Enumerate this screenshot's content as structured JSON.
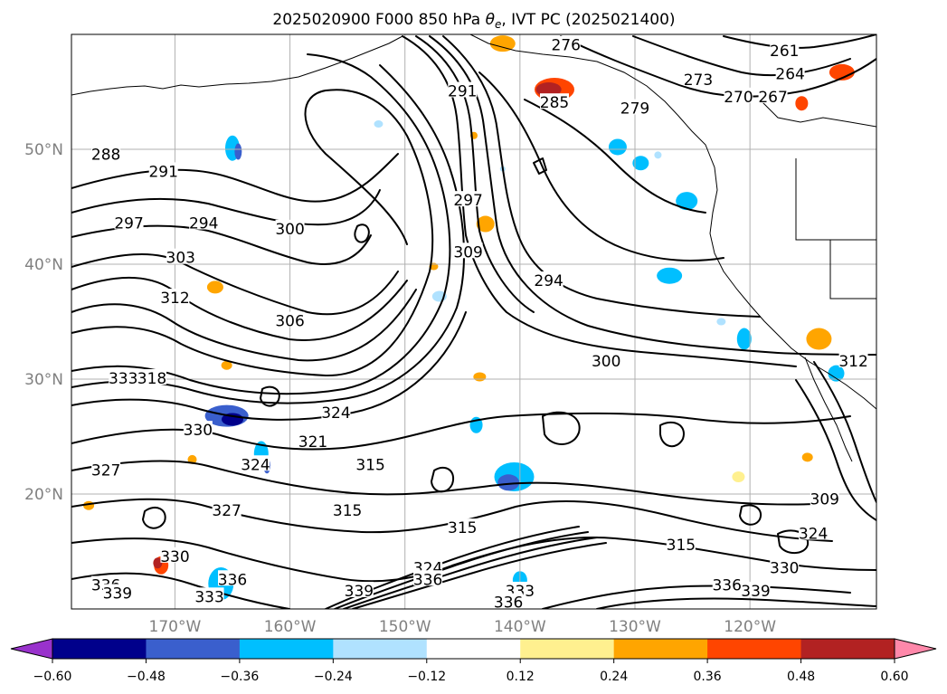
{
  "title": "2025020900 F000 850 hPa θe, IVT PC (2025021400)",
  "title_parts": {
    "prefix": "2025020900 F000 850 hPa ",
    "symbol": "θ",
    "subscript": "e",
    "suffix": ", IVT PC (2025021400)"
  },
  "chart_data": {
    "type": "contour",
    "title": "2025020900 F000 850 hPa θe, IVT PC (2025021400)",
    "x_ticks": [
      "170°W",
      "160°W",
      "150°W",
      "140°W",
      "130°W",
      "120°W"
    ],
    "y_ticks": [
      "20°N",
      "30°N",
      "40°N",
      "50°N"
    ],
    "x_tick_values": [
      -170,
      -160,
      -150,
      -140,
      -130,
      -120
    ],
    "y_tick_values": [
      20,
      30,
      40,
      50
    ],
    "xlim": [
      -179,
      -109
    ],
    "ylim": [
      10,
      60
    ],
    "grid": true,
    "colorbar": {
      "orientation": "horizontal",
      "extend": "both",
      "tick_labels": [
        "−0.60",
        "−0.48",
        "−0.36",
        "−0.24",
        "−0.12",
        "0.12",
        "0.24",
        "0.36",
        "0.48",
        "0.60"
      ],
      "bounds": [
        -0.6,
        -0.48,
        -0.36,
        -0.24,
        -0.12,
        0.12,
        0.24,
        0.36,
        0.48,
        0.6
      ],
      "colors": [
        "#9932cc",
        "#00008b",
        "#3a5fcd",
        "#00bfff",
        "#b0e2ff",
        "#ffffff",
        "#fff08f",
        "#ffa500",
        "#ff4500",
        "#b22222",
        "#ff88aa"
      ]
    },
    "contour_labels": [
      {
        "text": "261",
        "lon": -117,
        "lat": 58.5
      },
      {
        "text": "264",
        "lon": -116.5,
        "lat": 56.5
      },
      {
        "text": "267",
        "lon": -118,
        "lat": 54.5
      },
      {
        "text": "270",
        "lon": -121,
        "lat": 54.5
      },
      {
        "text": "273",
        "lon": -124.5,
        "lat": 56
      },
      {
        "text": "276",
        "lon": -136,
        "lat": 59
      },
      {
        "text": "279",
        "lon": -130,
        "lat": 53.5
      },
      {
        "text": "285",
        "lon": -137,
        "lat": 54
      },
      {
        "text": "288",
        "lon": -176,
        "lat": 49.5
      },
      {
        "text": "291",
        "lon": -145,
        "lat": 55
      },
      {
        "text": "291",
        "lon": -171,
        "lat": 48
      },
      {
        "text": "294",
        "lon": -167.5,
        "lat": 43.5
      },
      {
        "text": "294",
        "lon": -137.5,
        "lat": 38.5
      },
      {
        "text": "297",
        "lon": -174,
        "lat": 43.5
      },
      {
        "text": "297",
        "lon": -144.5,
        "lat": 45.5
      },
      {
        "text": "300",
        "lon": -160,
        "lat": 43
      },
      {
        "text": "300",
        "lon": -132.5,
        "lat": 31.5
      },
      {
        "text": "303",
        "lon": -169.5,
        "lat": 40.5
      },
      {
        "text": "306",
        "lon": -160,
        "lat": 35
      },
      {
        "text": "309",
        "lon": -144.5,
        "lat": 41
      },
      {
        "text": "309",
        "lon": -113.5,
        "lat": 19.5
      },
      {
        "text": "312",
        "lon": -170,
        "lat": 37
      },
      {
        "text": "312",
        "lon": -111,
        "lat": 31.5
      },
      {
        "text": "315",
        "lon": -153,
        "lat": 22.5
      },
      {
        "text": "315",
        "lon": -155,
        "lat": 18.5
      },
      {
        "text": "315",
        "lon": -145,
        "lat": 17
      },
      {
        "text": "315",
        "lon": -126,
        "lat": 15.5
      },
      {
        "text": "318",
        "lon": -172,
        "lat": 30
      },
      {
        "text": "321",
        "lon": -158,
        "lat": 24.5
      },
      {
        "text": "324",
        "lon": -163,
        "lat": 22.5
      },
      {
        "text": "324",
        "lon": -156,
        "lat": 27
      },
      {
        "text": "324",
        "lon": -148,
        "lat": 13.5
      },
      {
        "text": "324",
        "lon": -114.5,
        "lat": 16.5
      },
      {
        "text": "327",
        "lon": -165.5,
        "lat": 18.5
      },
      {
        "text": "327",
        "lon": -176,
        "lat": 22
      },
      {
        "text": "330",
        "lon": -170,
        "lat": 14.5
      },
      {
        "text": "330",
        "lon": -168,
        "lat": 25.5
      },
      {
        "text": "330",
        "lon": -117,
        "lat": 13.5
      },
      {
        "text": "333",
        "lon": -174.5,
        "lat": 30
      },
      {
        "text": "333",
        "lon": -167,
        "lat": 11
      },
      {
        "text": "333",
        "lon": -140,
        "lat": 11.5
      },
      {
        "text": "336",
        "lon": -176,
        "lat": 12
      },
      {
        "text": "336",
        "lon": -165,
        "lat": 12.5
      },
      {
        "text": "336",
        "lon": -148,
        "lat": 12.5
      },
      {
        "text": "336",
        "lon": -141,
        "lat": 10.5
      },
      {
        "text": "336",
        "lon": -122,
        "lat": 12
      },
      {
        "text": "339",
        "lon": -175,
        "lat": 11.3
      },
      {
        "text": "339",
        "lon": -154,
        "lat": 11.5
      },
      {
        "text": "339",
        "lon": -119.5,
        "lat": 11.5
      }
    ]
  }
}
